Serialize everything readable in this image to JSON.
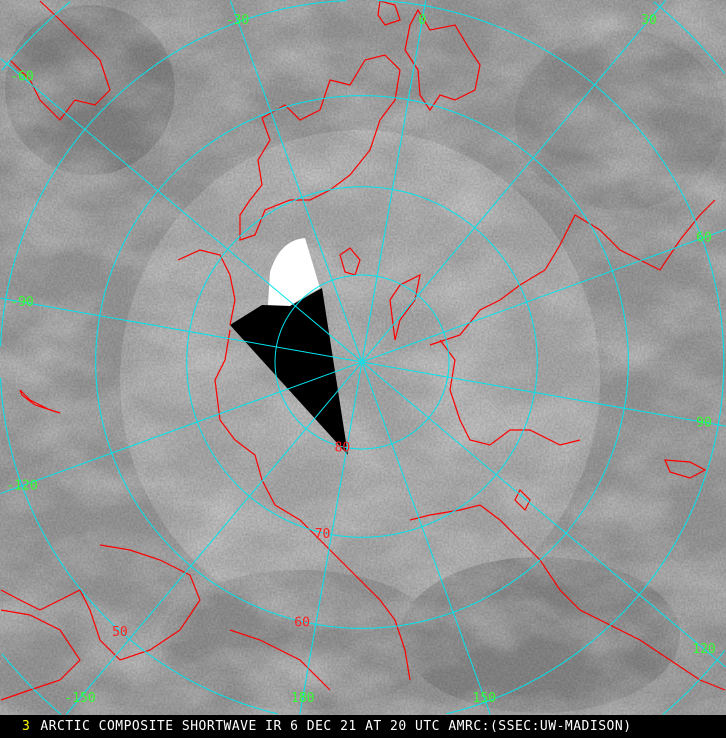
{
  "caption": {
    "frame_number": "3",
    "text": "ARCTIC COMPOSITE SHORTWAVE IR 6 DEC 21 AT 20 UTC AMRC:(SSEC:UW-MADISON)"
  },
  "map": {
    "projection": "polar stereographic (north pole)",
    "colors": {
      "graticule": "#00e5ee",
      "coastline": "#ff0000",
      "lon_labels": "#33ff33",
      "lat_labels": "#ff2020",
      "frame_number": "#ffff00"
    },
    "latitude_circles": [
      80,
      70,
      60,
      50,
      40
    ],
    "longitude_meridians": [
      -150,
      -120,
      -90,
      -60,
      -30,
      0,
      30,
      60,
      90,
      120,
      150,
      180
    ],
    "lon_labels": [
      {
        "label": "-60",
        "lon": -60
      },
      {
        "label": "-30",
        "lon": -30
      },
      {
        "label": "0",
        "lon": 0
      },
      {
        "label": "30",
        "lon": 30
      },
      {
        "label": "60",
        "lon": 60
      },
      {
        "label": "90",
        "lon": 90
      },
      {
        "label": "120",
        "lon": 120
      },
      {
        "label": "150",
        "lon": 150
      },
      {
        "label": "180",
        "lon": 180
      },
      {
        "label": "-150",
        "lon": -150
      },
      {
        "label": "-120",
        "lon": -120
      },
      {
        "label": "-90",
        "lon": -90
      }
    ],
    "lat_labels": [
      {
        "label": "80",
        "lat": 80
      },
      {
        "label": "70",
        "lat": 70
      },
      {
        "label": "60",
        "lat": 60
      },
      {
        "label": "50",
        "lat": 50
      }
    ]
  }
}
